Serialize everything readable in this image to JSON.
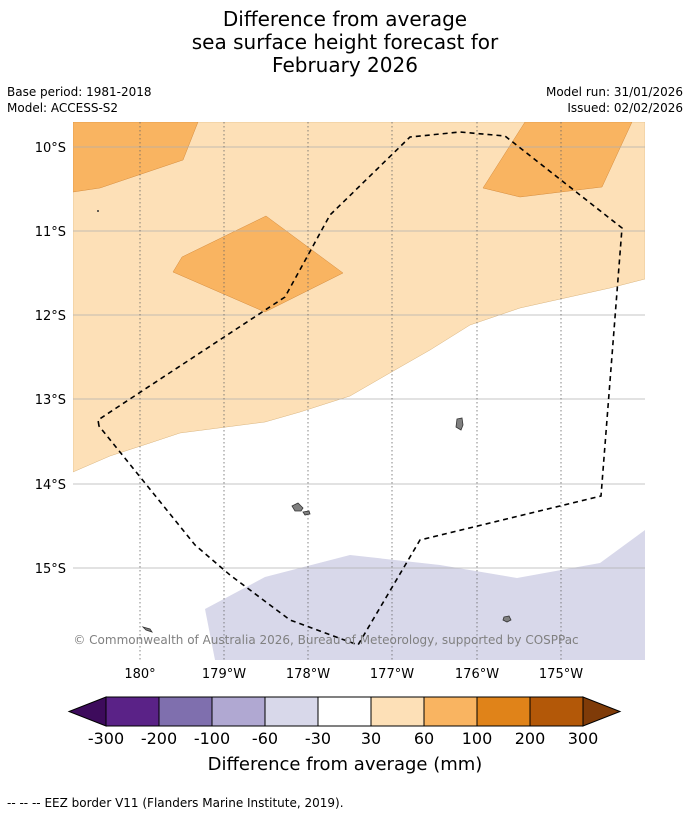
{
  "title": {
    "line1": "Difference from average",
    "line2": "sea surface height forecast for",
    "line3": "February 2026"
  },
  "meta": {
    "base_period": "Base period: 1981-2018",
    "model": "Model: ACCESS-S2",
    "model_run": "Model run: 31/01/2026",
    "issued": "Issued: 02/02/2026"
  },
  "map": {
    "lat_labels": [
      "10°S",
      "11°S",
      "12°S",
      "13°S",
      "14°S",
      "15°S"
    ],
    "lon_labels": [
      "180°",
      "179°W",
      "178°W",
      "177°W",
      "176°W",
      "175°W"
    ],
    "copyright": "© Commonwealth of Australia 2026, Bureau of Meteorology, supported by COSPPac",
    "fill_colors": {
      "light_orange": "#fde0b7",
      "mid_orange": "#f9b461",
      "light_lavender": "#d8d8ea",
      "land": "#808080"
    }
  },
  "colorbar": {
    "ticks": [
      "-300",
      "-200",
      "-100",
      "-60",
      "-30",
      "30",
      "60",
      "100",
      "200",
      "300"
    ],
    "colors": [
      "#3d0b5c",
      "#5a2287",
      "#7f6fae",
      "#b0a8d2",
      "#d8d8ea",
      "#ffffff",
      "#fde0b7",
      "#f9b461",
      "#e08319",
      "#b35808",
      "#7f3b08"
    ],
    "label": "Difference from average (mm)"
  },
  "footer": {
    "eez_legend_marker": "--  --  --",
    "eez_legend_text": "EEZ border V11 (Flanders Marine Institute, 2019)."
  }
}
